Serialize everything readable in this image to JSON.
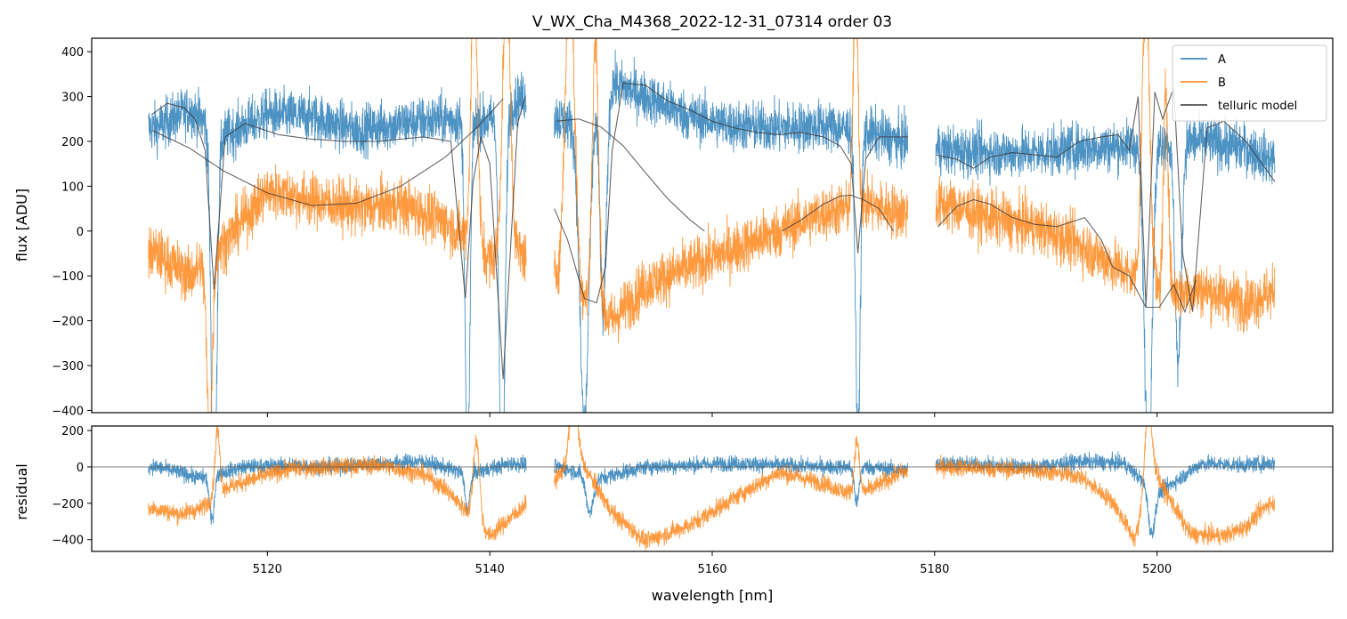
{
  "chart_data": [
    {
      "type": "line",
      "panel": "top",
      "title": "V_WX_Cha_M4368_2022-12-31_07314  order 03",
      "xlabel": "",
      "ylabel": "flux [ADU]",
      "xlim": [
        5104.2,
        5215.8
      ],
      "ylim": [
        -405,
        430
      ],
      "xticks": [
        5120,
        5140,
        5160,
        5180,
        5200
      ],
      "yticks": [
        -400,
        -300,
        -200,
        -100,
        0,
        100,
        200,
        300,
        400
      ],
      "ytick_labels": [
        "−400",
        "−300",
        "−200",
        "−100",
        "0",
        "100",
        "200",
        "300",
        "400"
      ],
      "segments": [
        [
          5109.3,
          5143.3
        ],
        [
          5145.8,
          5177.6
        ],
        [
          5180.1,
          5210.6
        ]
      ],
      "legend": {
        "position": "top-right",
        "entries": [
          "A",
          "B",
          "telluric model"
        ]
      },
      "series": [
        {
          "name": "A",
          "color": "#1f77b4",
          "x": [
            5110,
            5113,
            5116,
            5120,
            5124,
            5128,
            5132,
            5136,
            5140,
            5143,
            5147,
            5151,
            5154,
            5158,
            5162,
            5166,
            5170,
            5174,
            5177,
            5181,
            5185,
            5189,
            5193,
            5197,
            5200,
            5204,
            5208,
            5210
          ],
          "values": [
            230,
            270,
            210,
            260,
            255,
            225,
            240,
            250,
            245,
            300,
            240,
            330,
            300,
            255,
            235,
            230,
            235,
            220,
            200,
            180,
            175,
            175,
            185,
            190,
            200,
            200,
            185,
            160
          ]
        },
        {
          "name": "B",
          "color": "#ff7f0e",
          "x": [
            5110,
            5113,
            5116,
            5120,
            5124,
            5128,
            5132,
            5136,
            5140,
            5143,
            5147,
            5151,
            5154,
            5158,
            5162,
            5166,
            5170,
            5174,
            5177,
            5181,
            5185,
            5189,
            5193,
            5197,
            5200,
            5204,
            5208,
            5210
          ],
          "values": [
            -50,
            -100,
            -30,
            90,
            70,
            50,
            60,
            20,
            -60,
            -50,
            -130,
            -200,
            -120,
            -80,
            -40,
            0,
            40,
            60,
            40,
            60,
            30,
            10,
            -30,
            -90,
            -140,
            -130,
            -160,
            -140
          ]
        },
        {
          "name": "telluric model (A)",
          "legend_name": "telluric model",
          "color": "#333333",
          "x": [
            5109.6,
            5111,
            5112.5,
            5113.5,
            5114.4,
            5115.2,
            5116.2,
            5118,
            5121,
            5124,
            5127,
            5130,
            5134,
            5136.5,
            5137.8,
            5138.5,
            5139.2,
            5140,
            5141.2,
            5142.5,
            5143.2
          ],
          "values": [
            260,
            285,
            275,
            250,
            180,
            -130,
            210,
            240,
            215,
            205,
            200,
            200,
            210,
            200,
            -150,
            110,
            210,
            150,
            -330,
            240,
            300
          ]
        },
        {
          "name": "telluric model (A) 2",
          "color": "#333333",
          "x": [
            5145.8,
            5147,
            5148.5,
            5149.6,
            5150.4,
            5151,
            5152,
            5154,
            5156,
            5158,
            5160,
            5162,
            5164,
            5166,
            5168,
            5170,
            5171.5,
            5172.5,
            5173.1,
            5173.8,
            5175,
            5177.6
          ],
          "values": [
            50,
            -20,
            -150,
            -160,
            -80,
            180,
            330,
            325,
            290,
            270,
            245,
            230,
            220,
            215,
            220,
            210,
            190,
            150,
            -50,
            160,
            210,
            210
          ]
        },
        {
          "name": "telluric model (A) 3",
          "color": "#333333",
          "x": [
            5180.1,
            5182,
            5183.5,
            5185,
            5187,
            5189,
            5191,
            5193,
            5195,
            5196.5,
            5197.5,
            5198.3,
            5199,
            5199.8,
            5200.5,
            5201.5,
            5202.3,
            5203.2,
            5204.5,
            5206,
            5208,
            5210.6
          ],
          "values": [
            170,
            160,
            140,
            165,
            175,
            170,
            165,
            200,
            210,
            215,
            180,
            300,
            -170,
            310,
            250,
            320,
            -50,
            -180,
            230,
            245,
            200,
            110
          ]
        },
        {
          "name": "telluric model (B) 1",
          "color": "#333333",
          "x": [
            5109.6,
            5113,
            5116,
            5120,
            5124,
            5128,
            5132,
            5136,
            5139,
            5141.2
          ],
          "values": [
            225,
            185,
            135,
            85,
            57,
            62,
            100,
            165,
            235,
            295
          ]
        },
        {
          "name": "telluric model (B) 2",
          "color": "#333333",
          "x": [
            5146,
            5148,
            5150,
            5152,
            5154,
            5156,
            5158,
            5159.3
          ],
          "values": [
            245,
            250,
            232,
            190,
            130,
            72,
            25,
            0
          ]
        },
        {
          "name": "telluric model (B) 3",
          "color": "#333333",
          "x": [
            5166.3,
            5168,
            5170,
            5171.5,
            5172.5,
            5173,
            5173.6,
            5175,
            5176.3
          ],
          "values": [
            0,
            25,
            60,
            78,
            80,
            75,
            70,
            50,
            0
          ]
        },
        {
          "name": "telluric model (B) 4",
          "color": "#333333",
          "x": [
            5180.3,
            5182,
            5183.5,
            5185,
            5187,
            5189,
            5191,
            5193.5,
            5195,
            5196,
            5197.5,
            5199,
            5200.2,
            5201.5,
            5202.5,
            5203.5
          ],
          "values": [
            10,
            55,
            70,
            60,
            30,
            15,
            10,
            30,
            -20,
            -80,
            -100,
            -170,
            -170,
            -120,
            -180,
            -110
          ]
        }
      ]
    },
    {
      "type": "line",
      "panel": "bottom",
      "xlabel": "wavelength [nm]",
      "ylabel": "residual",
      "xlim": [
        5104.2,
        5215.8
      ],
      "ylim": [
        -465,
        225
      ],
      "xticks": [
        5120,
        5140,
        5160,
        5180,
        5200
      ],
      "yticks": [
        -400,
        -200,
        0,
        200
      ],
      "ytick_labels": [
        "−400",
        "−200",
        "0",
        "200"
      ],
      "reference_line": 0,
      "series": [
        {
          "name": "A residual",
          "color": "#1f77b4",
          "x": [
            5110,
            5114,
            5118,
            5122,
            5126,
            5130,
            5134,
            5138,
            5142,
            5146,
            5150,
            5154,
            5158,
            5162,
            5166,
            5170,
            5174,
            5177,
            5181,
            5185,
            5189,
            5193,
            5197,
            5200,
            5204,
            5208,
            5210
          ],
          "values": [
            0,
            -60,
            0,
            10,
            0,
            20,
            30,
            -40,
            20,
            0,
            -60,
            0,
            10,
            20,
            10,
            0,
            0,
            -20,
            20,
            10,
            0,
            30,
            20,
            -150,
            20,
            10,
            20
          ]
        },
        {
          "name": "B residual",
          "color": "#ff7f0e",
          "x": [
            5110,
            5112,
            5114,
            5116,
            5118,
            5122,
            5126,
            5130,
            5134,
            5136,
            5138,
            5140,
            5146,
            5148,
            5151,
            5154,
            5158,
            5162,
            5166,
            5170,
            5172,
            5174,
            5177,
            5181,
            5185,
            5189,
            5193,
            5196,
            5198,
            5200,
            5203,
            5206,
            5208,
            5210
          ],
          "values": [
            -230,
            -260,
            -230,
            -120,
            -80,
            -10,
            0,
            10,
            -40,
            -120,
            -250,
            -380,
            -60,
            50,
            -250,
            -410,
            -320,
            -170,
            -30,
            -90,
            -140,
            -130,
            -30,
            0,
            -10,
            -20,
            -50,
            -190,
            -400,
            -60,
            -370,
            -380,
            -330,
            -200
          ]
        }
      ]
    }
  ]
}
